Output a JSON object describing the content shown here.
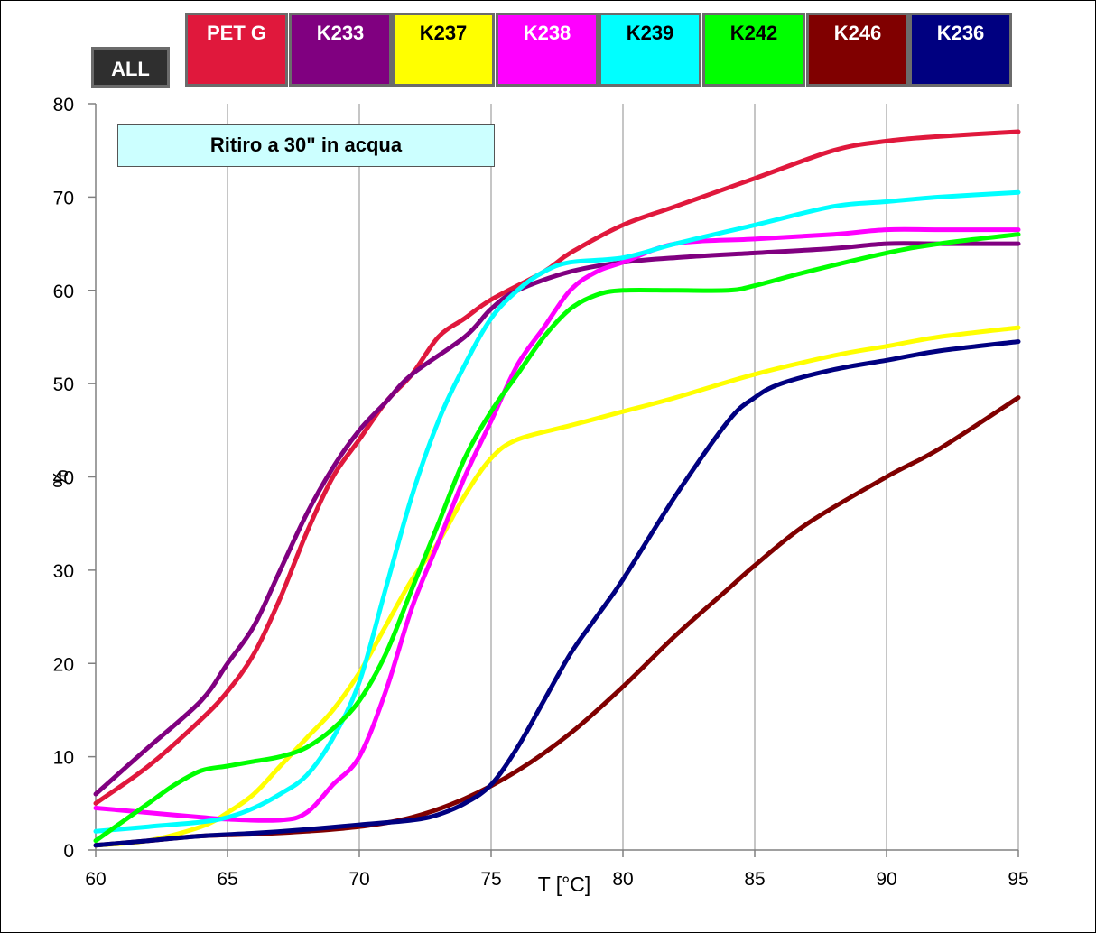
{
  "buttons": {
    "all": "ALL",
    "series": [
      {
        "label": "PET G",
        "bg": "#e0183c",
        "fg": "#ffffff"
      },
      {
        "label": "K233",
        "bg": "#800080",
        "fg": "#ffffff"
      },
      {
        "label": "K237",
        "bg": "#ffff00",
        "fg": "#000000"
      },
      {
        "label": "K238",
        "bg": "#ff00ff",
        "fg": "#ffffff"
      },
      {
        "label": "K239",
        "bg": "#00ffff",
        "fg": "#000000"
      },
      {
        "label": "K242",
        "bg": "#00ff00",
        "fg": "#000000"
      },
      {
        "label": "K246",
        "bg": "#800000",
        "fg": "#ffffff"
      },
      {
        "label": "K236",
        "bg": "#000080",
        "fg": "#ffffff"
      }
    ]
  },
  "chart_data": {
    "type": "line",
    "title": "Ritiro a 30\" in acqua",
    "xlabel": "T [°C]",
    "ylabel": "%",
    "xlim": [
      60,
      95
    ],
    "ylim": [
      0,
      80
    ],
    "x_ticks": [
      60,
      65,
      70,
      75,
      80,
      85,
      90,
      95
    ],
    "y_ticks": [
      0,
      10,
      20,
      30,
      40,
      50,
      60,
      70,
      80
    ],
    "grid": "vertical",
    "series": [
      {
        "name": "PET G",
        "color": "#e0183c",
        "points": [
          [
            60,
            5
          ],
          [
            62,
            9
          ],
          [
            64,
            14
          ],
          [
            65,
            17
          ],
          [
            66,
            21
          ],
          [
            67,
            27
          ],
          [
            68,
            34
          ],
          [
            69,
            40
          ],
          [
            70,
            44
          ],
          [
            71,
            48
          ],
          [
            72,
            51
          ],
          [
            73,
            55
          ],
          [
            74,
            57
          ],
          [
            75,
            59
          ],
          [
            77,
            62
          ],
          [
            78,
            64
          ],
          [
            80,
            67
          ],
          [
            82,
            69
          ],
          [
            85,
            72
          ],
          [
            88,
            75
          ],
          [
            90,
            76
          ],
          [
            92,
            76.5
          ],
          [
            95,
            77
          ]
        ]
      },
      {
        "name": "K233",
        "color": "#800080",
        "points": [
          [
            60,
            6
          ],
          [
            62,
            11
          ],
          [
            64,
            16
          ],
          [
            65,
            20
          ],
          [
            66,
            24
          ],
          [
            67,
            30
          ],
          [
            68,
            36
          ],
          [
            69,
            41
          ],
          [
            70,
            45
          ],
          [
            71,
            48
          ],
          [
            72,
            51
          ],
          [
            74,
            55
          ],
          [
            75,
            58
          ],
          [
            76,
            60
          ],
          [
            78,
            62
          ],
          [
            80,
            63
          ],
          [
            82,
            63.5
          ],
          [
            85,
            64
          ],
          [
            88,
            64.5
          ],
          [
            90,
            65
          ],
          [
            92,
            65
          ],
          [
            95,
            65
          ]
        ]
      },
      {
        "name": "K237",
        "color": "#ffff00",
        "points": [
          [
            60,
            0.5
          ],
          [
            62,
            1
          ],
          [
            64,
            2.5
          ],
          [
            65,
            4
          ],
          [
            66,
            6
          ],
          [
            67,
            9
          ],
          [
            68,
            12
          ],
          [
            69,
            15
          ],
          [
            70,
            19
          ],
          [
            71,
            24
          ],
          [
            72,
            29
          ],
          [
            73,
            33
          ],
          [
            74,
            38
          ],
          [
            75,
            42
          ],
          [
            76,
            44
          ],
          [
            78,
            45.5
          ],
          [
            80,
            47
          ],
          [
            82,
            48.5
          ],
          [
            85,
            51
          ],
          [
            88,
            53
          ],
          [
            90,
            54
          ],
          [
            92,
            55
          ],
          [
            95,
            56
          ]
        ]
      },
      {
        "name": "K238",
        "color": "#ff00ff",
        "points": [
          [
            60,
            4.5
          ],
          [
            62,
            4
          ],
          [
            64,
            3.5
          ],
          [
            65,
            3.3
          ],
          [
            67,
            3.2
          ],
          [
            68,
            4
          ],
          [
            69,
            7
          ],
          [
            70,
            10
          ],
          [
            71,
            17
          ],
          [
            72,
            26
          ],
          [
            73,
            33
          ],
          [
            74,
            40
          ],
          [
            75,
            46
          ],
          [
            76,
            52
          ],
          [
            77,
            56
          ],
          [
            78,
            60
          ],
          [
            79,
            62
          ],
          [
            80,
            63
          ],
          [
            82,
            65
          ],
          [
            85,
            65.5
          ],
          [
            88,
            66
          ],
          [
            90,
            66.5
          ],
          [
            92,
            66.5
          ],
          [
            95,
            66.5
          ]
        ]
      },
      {
        "name": "K239",
        "color": "#00ffff",
        "points": [
          [
            60,
            2
          ],
          [
            62,
            2.5
          ],
          [
            64,
            3
          ],
          [
            65,
            3.5
          ],
          [
            66,
            4.5
          ],
          [
            67,
            6
          ],
          [
            68,
            8
          ],
          [
            69,
            12
          ],
          [
            70,
            18
          ],
          [
            71,
            28
          ],
          [
            72,
            38
          ],
          [
            73,
            46
          ],
          [
            74,
            52
          ],
          [
            75,
            57
          ],
          [
            76,
            60
          ],
          [
            77,
            62
          ],
          [
            78,
            63
          ],
          [
            80,
            63.5
          ],
          [
            82,
            65
          ],
          [
            85,
            67
          ],
          [
            88,
            69
          ],
          [
            90,
            69.5
          ],
          [
            92,
            70
          ],
          [
            95,
            70.5
          ]
        ]
      },
      {
        "name": "K242",
        "color": "#00ff00",
        "points": [
          [
            60,
            1
          ],
          [
            61,
            3
          ],
          [
            62,
            5
          ],
          [
            63,
            7
          ],
          [
            64,
            8.5
          ],
          [
            65,
            9
          ],
          [
            66,
            9.5
          ],
          [
            67,
            10
          ],
          [
            68,
            11
          ],
          [
            69,
            13
          ],
          [
            70,
            16
          ],
          [
            71,
            21
          ],
          [
            72,
            28
          ],
          [
            73,
            35
          ],
          [
            74,
            42
          ],
          [
            75,
            47
          ],
          [
            76,
            51
          ],
          [
            77,
            55
          ],
          [
            78,
            58
          ],
          [
            79,
            59.5
          ],
          [
            80,
            60
          ],
          [
            82,
            60
          ],
          [
            84,
            60
          ],
          [
            85,
            60.5
          ],
          [
            87,
            62
          ],
          [
            90,
            64
          ],
          [
            92,
            65
          ],
          [
            95,
            66
          ]
        ]
      },
      {
        "name": "K246",
        "color": "#800000",
        "points": [
          [
            60,
            0.5
          ],
          [
            62,
            1
          ],
          [
            64,
            1.5
          ],
          [
            66,
            1.7
          ],
          [
            68,
            2
          ],
          [
            70,
            2.5
          ],
          [
            72,
            3.5
          ],
          [
            74,
            5.5
          ],
          [
            76,
            8.5
          ],
          [
            78,
            12.5
          ],
          [
            80,
            17.5
          ],
          [
            82,
            23
          ],
          [
            84,
            28
          ],
          [
            85,
            30.5
          ],
          [
            87,
            35
          ],
          [
            90,
            40
          ],
          [
            92,
            43
          ],
          [
            95,
            48.5
          ]
        ]
      },
      {
        "name": "K236",
        "color": "#000080",
        "points": [
          [
            60,
            0.5
          ],
          [
            62,
            1
          ],
          [
            64,
            1.5
          ],
          [
            66,
            1.8
          ],
          [
            68,
            2.2
          ],
          [
            70,
            2.7
          ],
          [
            72,
            3.2
          ],
          [
            73,
            3.8
          ],
          [
            74,
            5
          ],
          [
            75,
            7
          ],
          [
            76,
            11
          ],
          [
            77,
            16
          ],
          [
            78,
            21
          ],
          [
            79,
            25
          ],
          [
            80,
            29
          ],
          [
            82,
            38
          ],
          [
            84,
            46
          ],
          [
            85,
            48.5
          ],
          [
            86,
            50
          ],
          [
            88,
            51.5
          ],
          [
            90,
            52.5
          ],
          [
            92,
            53.5
          ],
          [
            95,
            54.5
          ]
        ]
      }
    ]
  }
}
